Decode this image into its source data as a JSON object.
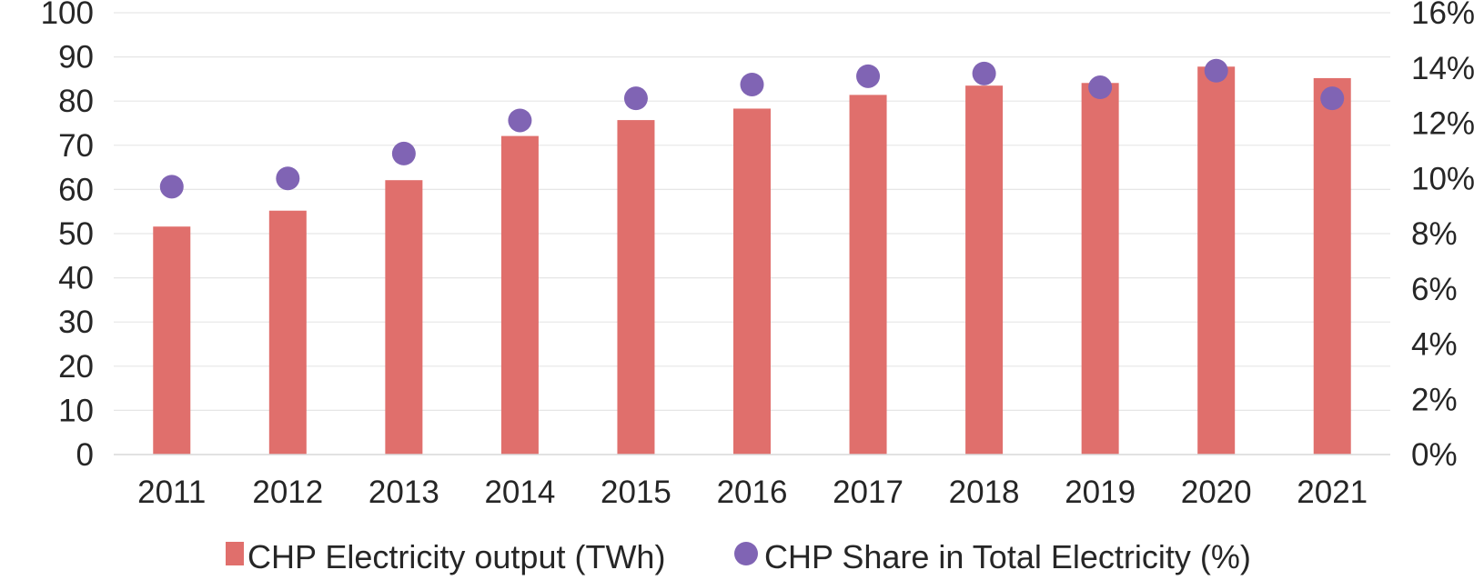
{
  "chart_data": {
    "type": "bar",
    "categories": [
      "2011",
      "2012",
      "2013",
      "2014",
      "2015",
      "2016",
      "2017",
      "2018",
      "2019",
      "2020",
      "2021"
    ],
    "series": [
      {
        "name": "CHP Electricity output (TWh)",
        "type": "bar",
        "axis": "left",
        "color": "#e06f6c",
        "values": [
          51.6,
          55.2,
          62.1,
          72.1,
          75.7,
          78.3,
          81.4,
          83.5,
          84.1,
          87.8,
          85.2
        ]
      },
      {
        "name": "CHP Share in Total Electricity (%)",
        "type": "scatter",
        "axis": "right",
        "color": "#8064b4",
        "values": [
          9.7,
          10.0,
          10.9,
          12.1,
          12.9,
          13.4,
          13.7,
          13.8,
          13.3,
          13.9,
          12.9
        ]
      }
    ],
    "y_left": {
      "ylim": [
        0,
        100
      ],
      "ticks": [
        "0",
        "10",
        "20",
        "30",
        "40",
        "50",
        "60",
        "70",
        "80",
        "90",
        "100"
      ]
    },
    "y_right": {
      "ylim": [
        0,
        16
      ],
      "ticks": [
        "0%",
        "2%",
        "4%",
        "6%",
        "8%",
        "10%",
        "12%",
        "14%",
        "16%"
      ]
    },
    "grid": true,
    "legend_position": "bottom"
  }
}
